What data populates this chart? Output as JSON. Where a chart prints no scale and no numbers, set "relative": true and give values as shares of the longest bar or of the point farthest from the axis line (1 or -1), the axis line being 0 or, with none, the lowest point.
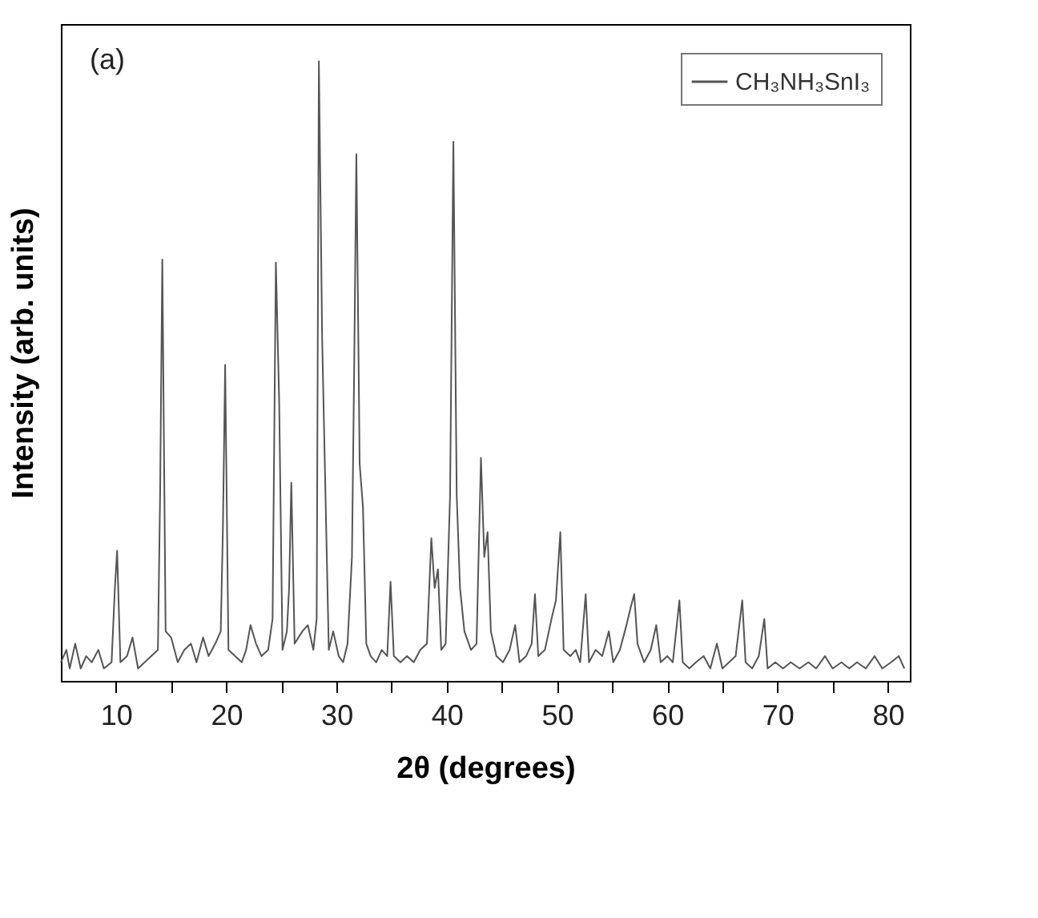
{
  "chart_data": {
    "type": "line",
    "relative": true,
    "xlabel": "2θ (degrees)",
    "ylabel": "Intensity (arb. units)",
    "annotations": [
      "(a)"
    ],
    "xlim": [
      5,
      82
    ],
    "xticks": [
      10,
      {
        "value": 15,
        "label": null
      },
      20,
      {
        "value": 25,
        "label": null
      },
      30,
      {
        "value": 35,
        "label": null
      },
      40,
      {
        "value": 45,
        "label": null
      },
      50,
      {
        "value": 55,
        "label": null
      },
      60,
      {
        "value": 65,
        "label": null
      },
      70,
      {
        "value": 75,
        "label": null
      },
      80
    ],
    "tick_labels": "x",
    "grid": false,
    "legend": "top right",
    "marker": "none",
    "line_style": "solid",
    "series": [
      {
        "name": "CH₃NH₃SnI₃",
        "color": "#555555",
        "x": [
          5.0,
          5.5,
          5.8,
          6.3,
          6.8,
          7.3,
          7.8,
          8.4,
          8.9,
          9.6,
          9.9,
          10.1,
          10.4,
          11.0,
          11.5,
          12.0,
          12.6,
          13.2,
          13.8,
          14.0,
          14.2,
          14.5,
          15.0,
          15.6,
          16.2,
          16.8,
          17.3,
          17.9,
          18.4,
          19.0,
          19.5,
          19.7,
          19.9,
          20.2,
          20.8,
          21.4,
          21.8,
          22.2,
          22.7,
          23.2,
          23.8,
          24.2,
          24.5,
          24.8,
          25.1,
          25.5,
          25.7,
          25.9,
          26.2,
          26.9,
          27.4,
          27.9,
          28.2,
          28.4,
          28.7,
          29.0,
          29.3,
          29.7,
          30.2,
          30.6,
          31.0,
          31.4,
          31.6,
          31.8,
          32.1,
          32.4,
          32.7,
          33.1,
          33.6,
          34.1,
          34.6,
          34.9,
          35.2,
          35.8,
          36.4,
          37.0,
          37.6,
          38.2,
          38.6,
          38.9,
          39.2,
          39.5,
          39.9,
          40.3,
          40.6,
          40.9,
          41.2,
          41.6,
          42.2,
          42.7,
          43.1,
          43.4,
          43.7,
          44.0,
          44.5,
          45.1,
          45.7,
          46.2,
          46.6,
          47.2,
          47.7,
          48.0,
          48.3,
          48.9,
          49.5,
          49.9,
          50.3,
          50.6,
          51.2,
          51.7,
          52.1,
          52.6,
          52.9,
          53.5,
          54.1,
          54.7,
          55.1,
          55.7,
          56.3,
          56.7,
          57.0,
          57.3,
          57.9,
          58.5,
          59.0,
          59.4,
          60.0,
          60.5,
          61.1,
          61.4,
          62.0,
          62.6,
          63.3,
          63.9,
          64.5,
          65.0,
          65.6,
          66.2,
          66.8,
          67.1,
          67.7,
          68.3,
          68.8,
          69.1,
          69.8,
          70.5,
          71.2,
          72.0,
          72.8,
          73.5,
          74.3,
          75.0,
          75.8,
          76.5,
          77.2,
          78.0,
          78.8,
          79.5,
          80.3,
          81.0,
          81.5
        ],
        "values": [
          0.03,
          0.05,
          0.02,
          0.06,
          0.02,
          0.04,
          0.03,
          0.05,
          0.02,
          0.03,
          0.15,
          0.21,
          0.03,
          0.04,
          0.07,
          0.02,
          0.03,
          0.04,
          0.05,
          0.3,
          0.68,
          0.08,
          0.07,
          0.03,
          0.05,
          0.06,
          0.03,
          0.07,
          0.04,
          0.06,
          0.08,
          0.25,
          0.51,
          0.05,
          0.04,
          0.03,
          0.05,
          0.09,
          0.06,
          0.04,
          0.05,
          0.1,
          0.675,
          0.45,
          0.05,
          0.08,
          0.15,
          0.32,
          0.06,
          0.08,
          0.09,
          0.05,
          0.1,
          1.0,
          0.55,
          0.3,
          0.05,
          0.08,
          0.04,
          0.03,
          0.06,
          0.2,
          0.5,
          0.85,
          0.35,
          0.28,
          0.06,
          0.04,
          0.03,
          0.05,
          0.04,
          0.16,
          0.04,
          0.03,
          0.04,
          0.03,
          0.05,
          0.06,
          0.23,
          0.15,
          0.18,
          0.05,
          0.06,
          0.3,
          0.87,
          0.3,
          0.15,
          0.08,
          0.05,
          0.06,
          0.36,
          0.2,
          0.24,
          0.08,
          0.04,
          0.03,
          0.05,
          0.09,
          0.03,
          0.04,
          0.06,
          0.14,
          0.04,
          0.05,
          0.1,
          0.13,
          0.24,
          0.05,
          0.04,
          0.05,
          0.03,
          0.14,
          0.03,
          0.05,
          0.04,
          0.08,
          0.03,
          0.05,
          0.09,
          0.12,
          0.14,
          0.06,
          0.03,
          0.05,
          0.09,
          0.03,
          0.04,
          0.03,
          0.13,
          0.03,
          0.02,
          0.03,
          0.04,
          0.02,
          0.06,
          0.02,
          0.03,
          0.04,
          0.13,
          0.03,
          0.02,
          0.04,
          0.1,
          0.02,
          0.03,
          0.02,
          0.03,
          0.02,
          0.03,
          0.02,
          0.04,
          0.02,
          0.03,
          0.02,
          0.03,
          0.02,
          0.04,
          0.02,
          0.03,
          0.04,
          0.02
        ]
      }
    ]
  }
}
